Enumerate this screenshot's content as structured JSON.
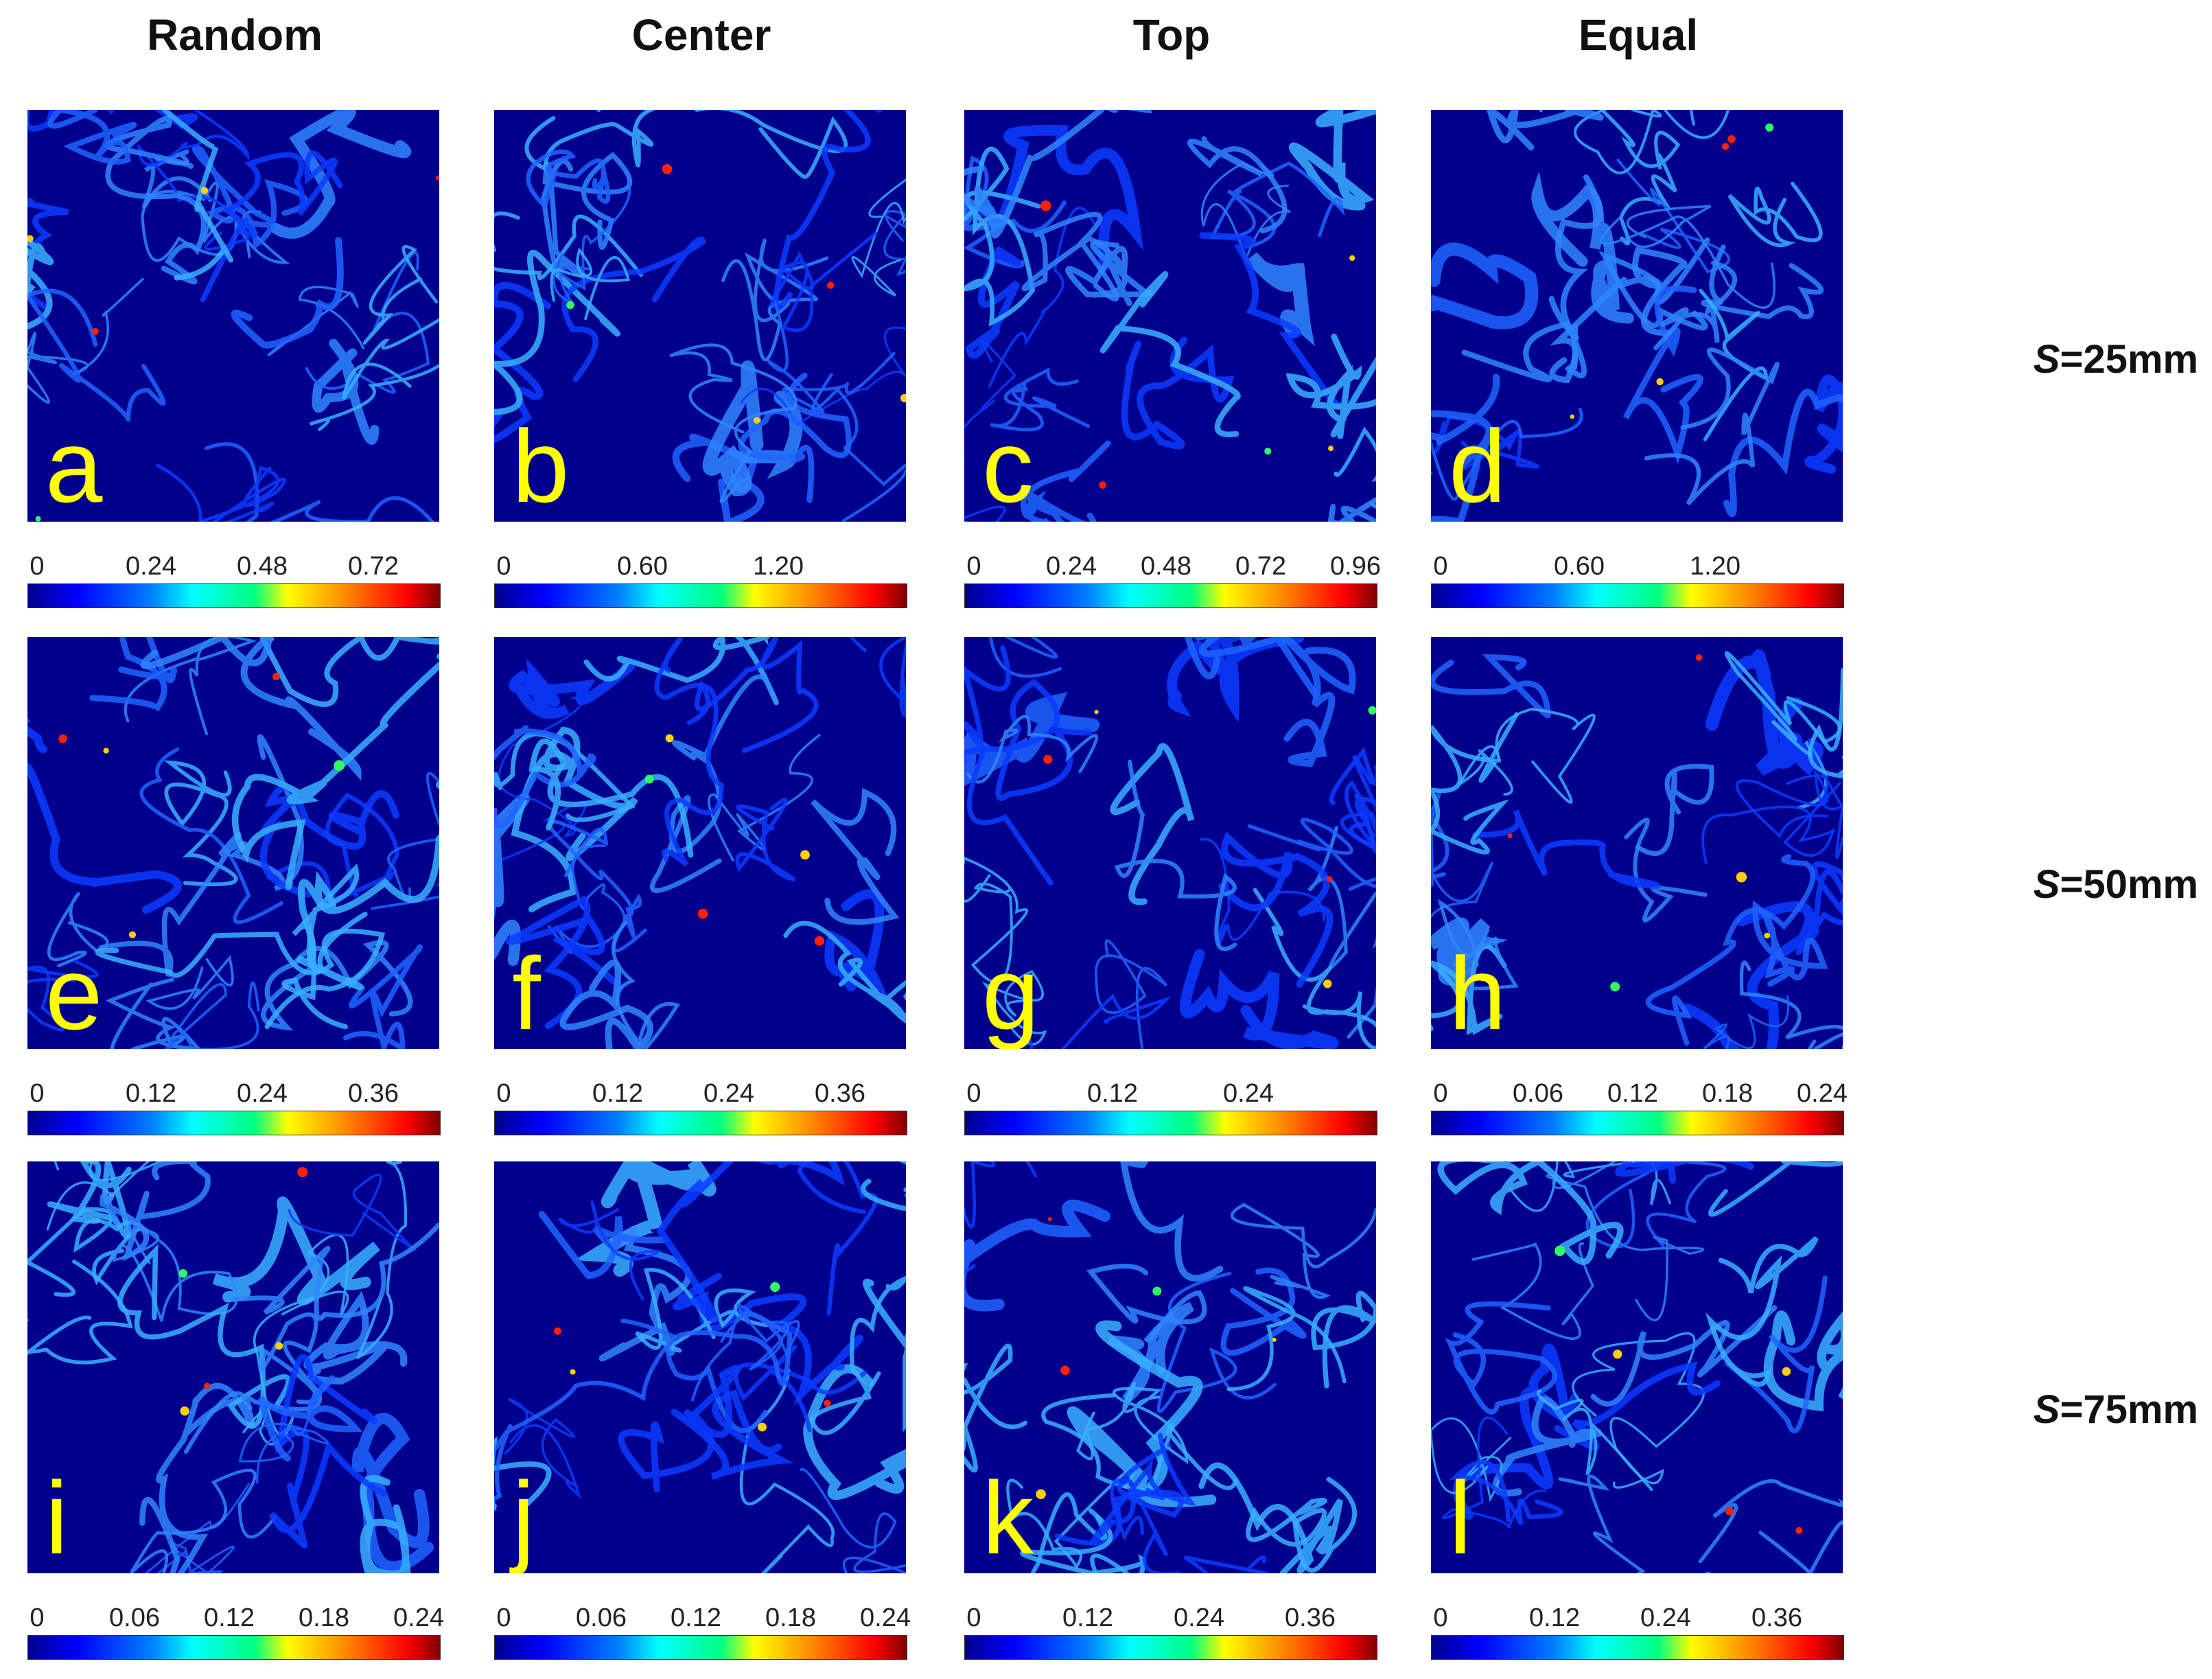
{
  "columns": [
    "Random",
    "Center",
    "Top",
    "Equal"
  ],
  "rows": [
    {
      "prefix": "S",
      "suffix": "=25mm"
    },
    {
      "prefix": "S",
      "suffix": "=50mm"
    },
    {
      "prefix": "S",
      "suffix": "=75mm"
    }
  ],
  "colors": {
    "background": "#00008c",
    "letter": "#ffff00"
  },
  "chart_data": {
    "type": "heatmap",
    "colormap": "jet",
    "panels": [
      {
        "letter": "a",
        "column": "Random",
        "row": "S=25mm",
        "ticks": [
          "0",
          "0.24",
          "0.48",
          "0.72"
        ]
      },
      {
        "letter": "b",
        "column": "Center",
        "row": "S=25mm",
        "ticks": [
          "0",
          "0.60",
          "1.20"
        ]
      },
      {
        "letter": "c",
        "column": "Top",
        "row": "S=25mm",
        "ticks": [
          "0",
          "0.24",
          "0.48",
          "0.72",
          "0.96"
        ]
      },
      {
        "letter": "d",
        "column": "Equal",
        "row": "S=25mm",
        "ticks": [
          "0",
          "0.60",
          "1.20"
        ]
      },
      {
        "letter": "e",
        "column": "Random",
        "row": "S=50mm",
        "ticks": [
          "0",
          "0.12",
          "0.24",
          "0.36"
        ]
      },
      {
        "letter": "f",
        "column": "Center",
        "row": "S=50mm",
        "ticks": [
          "0",
          "0.12",
          "0.24",
          "0.36"
        ]
      },
      {
        "letter": "g",
        "column": "Top",
        "row": "S=50mm",
        "ticks": [
          "0",
          "0.12",
          "0.24"
        ]
      },
      {
        "letter": "h",
        "column": "Equal",
        "row": "S=50mm",
        "ticks": [
          "0",
          "0.06",
          "0.12",
          "0.18",
          "0.24"
        ]
      },
      {
        "letter": "i",
        "column": "Random",
        "row": "S=75mm",
        "ticks": [
          "0",
          "0.06",
          "0.12",
          "0.18",
          "0.24"
        ]
      },
      {
        "letter": "j",
        "column": "Center",
        "row": "S=75mm",
        "ticks": [
          "0",
          "0.06",
          "0.12",
          "0.18",
          "0.24"
        ]
      },
      {
        "letter": "k",
        "column": "Top",
        "row": "S=75mm",
        "ticks": [
          "0",
          "0.12",
          "0.24",
          "0.36"
        ]
      },
      {
        "letter": "l",
        "column": "Equal",
        "row": "S=75mm",
        "ticks": [
          "0",
          "0.12",
          "0.24",
          "0.36"
        ]
      }
    ]
  }
}
